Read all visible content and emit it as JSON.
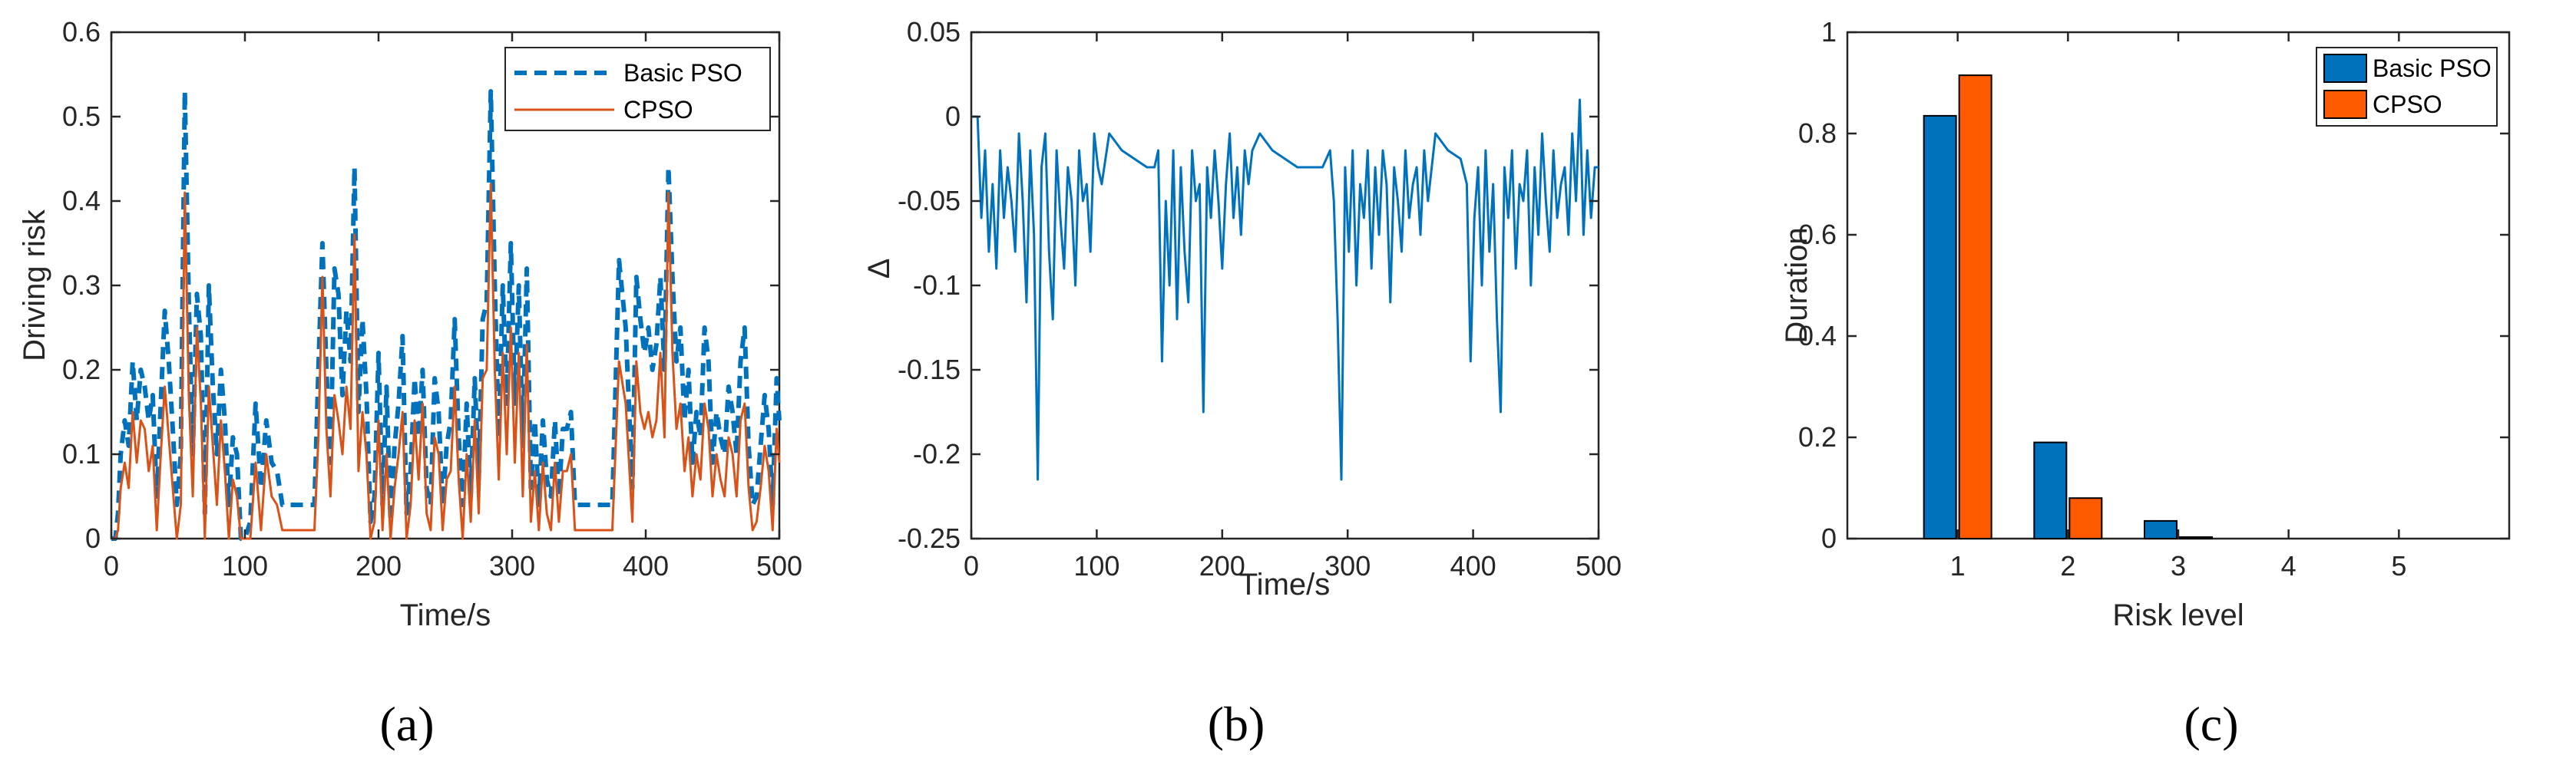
{
  "chart_data": [
    {
      "panel": "(a)",
      "type": "line",
      "xlabel": "Time/s",
      "ylabel": "Driving risk",
      "xlim": [
        0,
        500
      ],
      "ylim": [
        0,
        0.6
      ],
      "xticks": [
        0,
        100,
        200,
        300,
        400,
        500
      ],
      "yticks": [
        0,
        0.1,
        0.2,
        0.3,
        0.4,
        0.5,
        0.6
      ],
      "legend_position": "top-right",
      "series": [
        {
          "name": "Basic PSO",
          "color": "#0072BD",
          "style": "dashed",
          "x": [
            0,
            3,
            5,
            7,
            10,
            13,
            16,
            19,
            22,
            25,
            28,
            31,
            34,
            37,
            40,
            43,
            46,
            49,
            52,
            55,
            58,
            61,
            64,
            67,
            70,
            73,
            76,
            79,
            82,
            85,
            88,
            91,
            94,
            97,
            100,
            104,
            108,
            112,
            116,
            120,
            124,
            128,
            132,
            136,
            140,
            144,
            148,
            152,
            155,
            158,
            161,
            164,
            167,
            170,
            173,
            176,
            179,
            182,
            185,
            188,
            191,
            194,
            197,
            200,
            203,
            206,
            209,
            212,
            215,
            218,
            221,
            224,
            227,
            230,
            233,
            236,
            239,
            242,
            245,
            248,
            251,
            254,
            257,
            260,
            263,
            266,
            269,
            272,
            275,
            278,
            281,
            284,
            287,
            290,
            293,
            296,
            299,
            302,
            305,
            308,
            311,
            314,
            317,
            320,
            323,
            326,
            329,
            332,
            335,
            338,
            341,
            344,
            347,
            350,
            353,
            356,
            360,
            365,
            370,
            375,
            380,
            385,
            390,
            393,
            396,
            399,
            402,
            405,
            408,
            411,
            414,
            417,
            420,
            423,
            426,
            429,
            432,
            435,
            438,
            441,
            444,
            447,
            450,
            453,
            456,
            459,
            462,
            465,
            468,
            471,
            474,
            477,
            480,
            483,
            486,
            489,
            492,
            495,
            498,
            500
          ],
          "y": [
            0,
            0,
            0.03,
            0.1,
            0.14,
            0.11,
            0.21,
            0.14,
            0.2,
            0.18,
            0.14,
            0.17,
            0.05,
            0.16,
            0.27,
            0.21,
            0.13,
            0.04,
            0.1,
            0.53,
            0.28,
            0.1,
            0.29,
            0.24,
            0.03,
            0.3,
            0.18,
            0.1,
            0.2,
            0.14,
            0.04,
            0.12,
            0.1,
            0,
            0,
            0.02,
            0.16,
            0.06,
            0.14,
            0.09,
            0.08,
            0.04,
            0.04,
            0.04,
            0.04,
            0.04,
            0.04,
            0.04,
            0.2,
            0.35,
            0.2,
            0.09,
            0.32,
            0.29,
            0.17,
            0.27,
            0.21,
            0.44,
            0.15,
            0.26,
            0.17,
            0.02,
            0.05,
            0.22,
            0.04,
            0.18,
            0.02,
            0.11,
            0.16,
            0.24,
            0.03,
            0.08,
            0.19,
            0.12,
            0.2,
            0.06,
            0.04,
            0.19,
            0.15,
            0.04,
            0.11,
            0.14,
            0.26,
            0.12,
            0.04,
            0.16,
            0.05,
            0.19,
            0.07,
            0.26,
            0.28,
            0.53,
            0.3,
            0.12,
            0.3,
            0.16,
            0.35,
            0.16,
            0.3,
            0.11,
            0.32,
            0.06,
            0.14,
            0.04,
            0.14,
            0.07,
            0.05,
            0.14,
            0.05,
            0.13,
            0.13,
            0.15,
            0.04,
            0.04,
            0.04,
            0.04,
            0.04,
            0.04,
            0.04,
            0.04,
            0.33,
            0.25,
            0.06,
            0.31,
            0.26,
            0.22,
            0.25,
            0.2,
            0.23,
            0.31,
            0.2,
            0.44,
            0.31,
            0.21,
            0.25,
            0.14,
            0.2,
            0.09,
            0.15,
            0.12,
            0.25,
            0.21,
            0.09,
            0.15,
            0.12,
            0.1,
            0.18,
            0.15,
            0.1,
            0.21,
            0.25,
            0.11,
            0.04,
            0.05,
            0.11,
            0.17,
            0.13,
            0.04,
            0.19,
            0.14
          ]
        },
        {
          "name": "CPSO",
          "color": "#D95319",
          "style": "solid",
          "x": [
            0,
            3,
            5,
            7,
            10,
            13,
            16,
            19,
            22,
            25,
            28,
            31,
            34,
            37,
            40,
            43,
            46,
            49,
            52,
            55,
            58,
            61,
            64,
            67,
            70,
            73,
            76,
            79,
            82,
            85,
            88,
            91,
            94,
            97,
            100,
            104,
            108,
            112,
            116,
            120,
            124,
            128,
            132,
            136,
            140,
            144,
            148,
            152,
            155,
            158,
            161,
            164,
            167,
            170,
            173,
            176,
            179,
            182,
            185,
            188,
            191,
            194,
            197,
            200,
            203,
            206,
            209,
            212,
            215,
            218,
            221,
            224,
            227,
            230,
            233,
            236,
            239,
            242,
            245,
            248,
            251,
            254,
            257,
            260,
            263,
            266,
            269,
            272,
            275,
            278,
            281,
            284,
            287,
            290,
            293,
            296,
            299,
            302,
            305,
            308,
            311,
            314,
            317,
            320,
            323,
            326,
            329,
            332,
            335,
            338,
            341,
            344,
            347,
            350,
            353,
            356,
            360,
            365,
            370,
            375,
            380,
            385,
            390,
            393,
            396,
            399,
            402,
            405,
            408,
            411,
            414,
            417,
            420,
            423,
            426,
            429,
            432,
            435,
            438,
            441,
            444,
            447,
            450,
            453,
            456,
            459,
            462,
            465,
            468,
            471,
            474,
            477,
            480,
            483,
            486,
            489,
            492,
            495,
            498,
            500
          ],
          "y": [
            0,
            0,
            0.01,
            0.06,
            0.09,
            0.06,
            0.15,
            0.09,
            0.14,
            0.13,
            0.08,
            0.11,
            0.01,
            0.1,
            0.18,
            0.12,
            0.06,
            0,
            0.04,
            0.41,
            0.17,
            0.05,
            0.25,
            0.16,
            0,
            0.18,
            0.11,
            0.04,
            0.14,
            0.08,
            0,
            0.07,
            0.05,
            0,
            0,
            0,
            0.09,
            0.01,
            0.1,
            0.05,
            0.04,
            0.01,
            0.01,
            0.01,
            0.01,
            0.01,
            0.01,
            0.01,
            0.12,
            0.31,
            0.13,
            0.05,
            0.17,
            0.14,
            0.1,
            0.18,
            0.13,
            0.36,
            0.08,
            0.15,
            0.1,
            0,
            0.02,
            0.14,
            0.01,
            0.1,
            0,
            0.06,
            0.1,
            0.15,
            0,
            0.04,
            0.14,
            0.07,
            0.16,
            0.03,
            0.01,
            0.12,
            0.1,
            0.01,
            0.07,
            0.08,
            0.18,
            0.07,
            0,
            0.1,
            0.02,
            0.14,
            0.03,
            0.19,
            0.2,
            0.42,
            0.2,
            0.07,
            0.22,
            0.1,
            0.25,
            0.09,
            0.22,
            0.05,
            0.23,
            0.02,
            0.08,
            0.01,
            0.09,
            0.03,
            0.01,
            0.09,
            0.02,
            0.08,
            0.08,
            0.1,
            0.01,
            0.01,
            0.01,
            0.01,
            0.01,
            0.01,
            0.01,
            0.01,
            0.21,
            0.16,
            0.02,
            0.21,
            0.15,
            0.13,
            0.15,
            0.12,
            0.14,
            0.22,
            0.12,
            0.41,
            0.22,
            0.13,
            0.16,
            0.08,
            0.12,
            0.05,
            0.1,
            0.07,
            0.16,
            0.13,
            0.05,
            0.1,
            0.07,
            0.05,
            0.12,
            0.1,
            0.05,
            0.14,
            0.16,
            0.06,
            0.01,
            0.02,
            0.06,
            0.11,
            0.08,
            0.01,
            0.13,
            0.09
          ]
        }
      ]
    },
    {
      "panel": "(b)",
      "type": "line",
      "xlabel": "Time/s",
      "ylabel": "Δ",
      "xlim": [
        0,
        500
      ],
      "ylim": [
        -0.25,
        0.05
      ],
      "xticks": [
        0,
        100,
        200,
        300,
        400,
        500
      ],
      "yticks": [
        -0.25,
        -0.2,
        -0.15,
        -0.1,
        -0.05,
        0,
        0.05
      ],
      "series": [
        {
          "name": "",
          "color": "#0072BD",
          "style": "solid",
          "x": [
            0,
            5,
            8,
            11,
            14,
            17,
            20,
            23,
            26,
            29,
            32,
            35,
            38,
            41,
            44,
            47,
            50,
            53,
            56,
            59,
            62,
            65,
            68,
            71,
            74,
            77,
            80,
            83,
            86,
            89,
            92,
            95,
            98,
            101,
            104,
            110,
            120,
            130,
            140,
            146,
            149,
            152,
            155,
            158,
            161,
            164,
            167,
            170,
            173,
            176,
            179,
            182,
            185,
            188,
            191,
            194,
            197,
            200,
            203,
            206,
            209,
            212,
            215,
            218,
            221,
            224,
            230,
            240,
            250,
            260,
            270,
            280,
            286,
            289,
            292,
            295,
            298,
            301,
            304,
            307,
            310,
            313,
            316,
            319,
            322,
            325,
            328,
            331,
            334,
            337,
            340,
            343,
            346,
            349,
            352,
            355,
            358,
            361,
            364,
            370,
            380,
            390,
            395,
            398,
            401,
            404,
            407,
            410,
            413,
            416,
            419,
            422,
            425,
            428,
            431,
            434,
            437,
            440,
            443,
            446,
            449,
            452,
            455,
            458,
            461,
            464,
            467,
            470,
            473,
            476,
            479,
            482,
            485,
            488,
            491,
            494,
            497,
            500
          ],
          "y": [
            0,
            0,
            -0.06,
            -0.02,
            -0.08,
            -0.04,
            -0.09,
            -0.02,
            -0.06,
            -0.03,
            -0.05,
            -0.08,
            -0.01,
            -0.05,
            -0.11,
            -0.02,
            -0.07,
            -0.215,
            -0.03,
            -0.01,
            -0.08,
            -0.12,
            -0.02,
            -0.06,
            -0.09,
            -0.03,
            -0.05,
            -0.1,
            -0.02,
            -0.05,
            -0.04,
            -0.08,
            -0.01,
            -0.03,
            -0.04,
            -0.01,
            -0.02,
            -0.025,
            -0.03,
            -0.03,
            -0.02,
            -0.145,
            -0.05,
            -0.1,
            -0.02,
            -0.12,
            -0.03,
            -0.08,
            -0.11,
            -0.02,
            -0.05,
            -0.04,
            -0.175,
            -0.03,
            -0.06,
            -0.02,
            -0.05,
            -0.09,
            -0.04,
            -0.01,
            -0.06,
            -0.03,
            -0.07,
            -0.02,
            -0.04,
            -0.02,
            -0.01,
            -0.02,
            -0.025,
            -0.03,
            -0.03,
            -0.03,
            -0.02,
            -0.05,
            -0.12,
            -0.215,
            -0.03,
            -0.08,
            -0.02,
            -0.1,
            -0.04,
            -0.06,
            -0.02,
            -0.09,
            -0.03,
            -0.07,
            -0.02,
            -0.04,
            -0.11,
            -0.03,
            -0.05,
            -0.08,
            -0.02,
            -0.06,
            -0.04,
            -0.03,
            -0.07,
            -0.02,
            -0.05,
            -0.01,
            -0.02,
            -0.025,
            -0.04,
            -0.145,
            -0.06,
            -0.03,
            -0.1,
            -0.02,
            -0.08,
            -0.04,
            -0.12,
            -0.175,
            -0.03,
            -0.06,
            -0.02,
            -0.09,
            -0.04,
            -0.05,
            -0.02,
            -0.1,
            -0.03,
            -0.07,
            -0.01,
            -0.05,
            -0.08,
            -0.02,
            -0.06,
            -0.04,
            -0.03,
            -0.07,
            -0.01,
            -0.05,
            0.01,
            -0.07,
            -0.02,
            -0.06,
            -0.03,
            -0.03
          ]
        }
      ]
    },
    {
      "panel": "(c)",
      "type": "bar",
      "xlabel": "Risk level",
      "ylabel": "Duration",
      "categories": [
        "1",
        "2",
        "3",
        "4",
        "5"
      ],
      "ylim": [
        0,
        1
      ],
      "yticks": [
        0,
        0.2,
        0.4,
        0.6,
        0.8,
        1
      ],
      "legend_position": "top-right",
      "series": [
        {
          "name": "Basic PSO",
          "color": "#0072BD",
          "values": [
            0.835,
            0.19,
            0.035,
            0,
            0
          ]
        },
        {
          "name": "CPSO",
          "color": "#FF5A00",
          "values": [
            0.915,
            0.08,
            0.003,
            0,
            0
          ]
        }
      ]
    }
  ],
  "captions": [
    "(a)",
    "(b)",
    "(c)"
  ]
}
